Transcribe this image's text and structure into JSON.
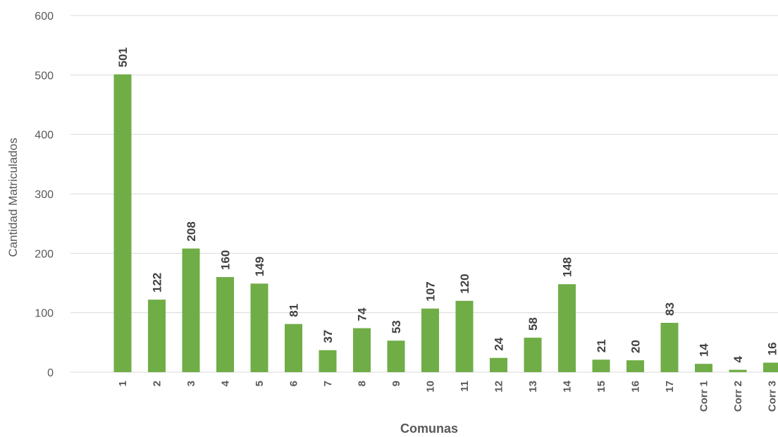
{
  "chart_data": {
    "type": "bar",
    "title": "",
    "xlabel": "Comunas",
    "ylabel": "Cantidad Matriculados",
    "ylim": [
      0,
      600
    ],
    "yticks": [
      0,
      100,
      200,
      300,
      400,
      500,
      600
    ],
    "grid": true,
    "legend": "none",
    "bar_color": "#70ad47",
    "categories": [
      "1",
      "2",
      "3",
      "4",
      "5",
      "6",
      "7",
      "8",
      "9",
      "10",
      "11",
      "12",
      "13",
      "14",
      "15",
      "16",
      "17",
      "Corr 1",
      "Corr 2",
      "Corr 3"
    ],
    "values": [
      501,
      122,
      208,
      160,
      149,
      81,
      37,
      74,
      53,
      107,
      120,
      24,
      58,
      148,
      21,
      20,
      83,
      14,
      4,
      16
    ]
  }
}
